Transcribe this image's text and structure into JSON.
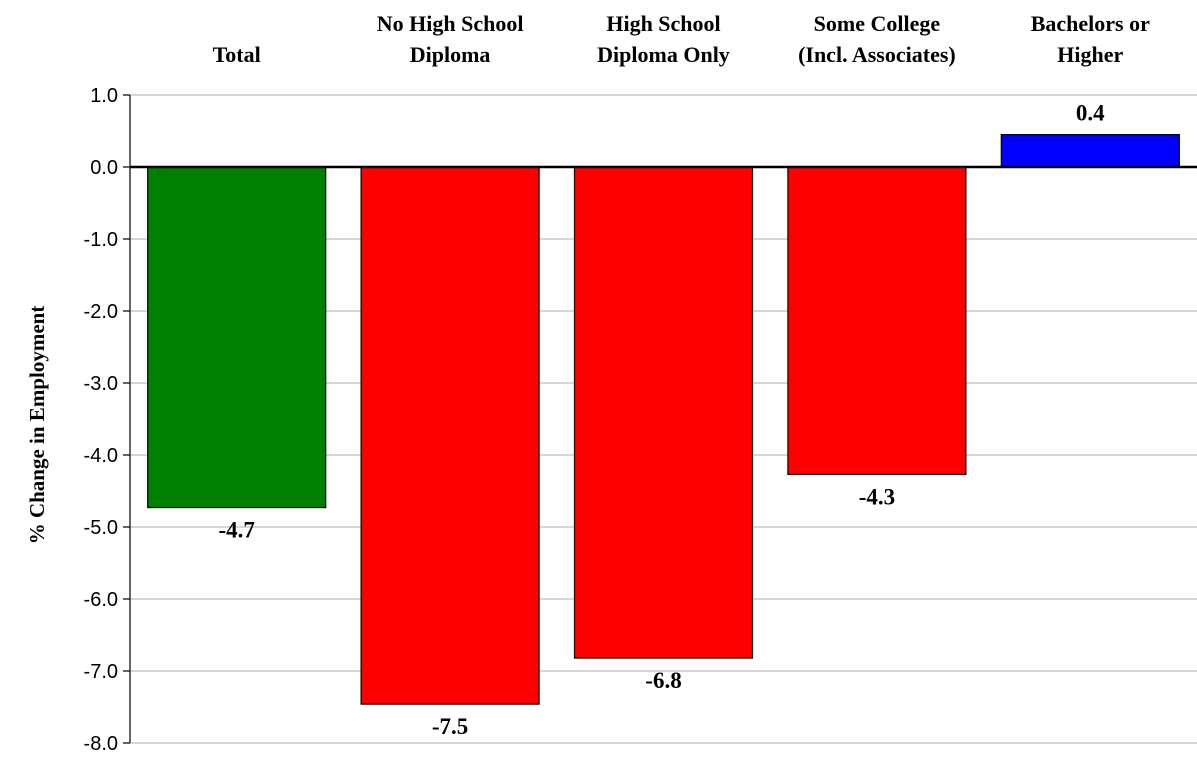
{
  "chart_data": {
    "type": "bar",
    "categories": [
      [
        "Total"
      ],
      [
        "No High School",
        "Diploma"
      ],
      [
        "High School",
        "Diploma Only"
      ],
      [
        "Some College",
        "(Incl. Associates)"
      ],
      [
        "Bachelors or",
        "Higher"
      ]
    ],
    "values": [
      -4.73,
      -7.46,
      -6.82,
      -4.27,
      0.45
    ],
    "data_labels": [
      "-4.7",
      "-7.5",
      "-6.8",
      "-4.3",
      "0.4"
    ],
    "bar_colors": [
      "#008000",
      "#ff0000",
      "#ff0000",
      "#ff0000",
      "#0000ff"
    ],
    "ylabel": "% Change in Employment",
    "xlabel": "",
    "title": "",
    "ylim": [
      -8,
      1
    ],
    "yticks": [
      "1.0",
      "0.0",
      "-1.0",
      "-2.0",
      "-3.0",
      "-4.0",
      "-5.0",
      "-6.0",
      "-7.0",
      "-8.0"
    ],
    "category_labels_position": "top",
    "grid": true,
    "legend": "none"
  }
}
